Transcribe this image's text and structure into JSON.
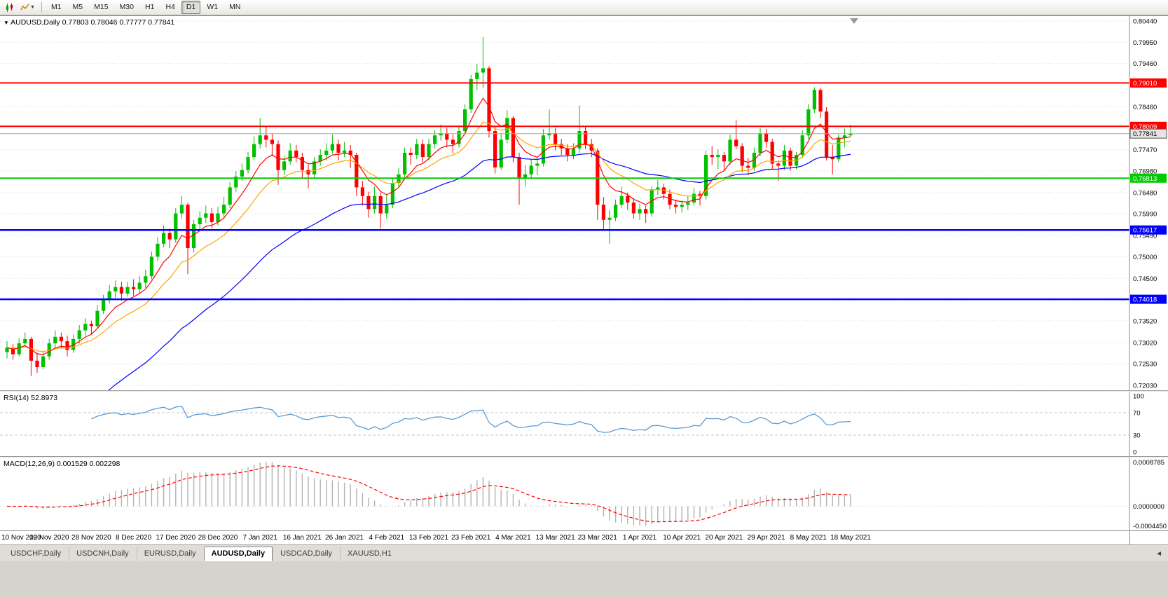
{
  "toolbar": {
    "timeframes": [
      "M1",
      "M5",
      "M15",
      "M30",
      "H1",
      "H4",
      "D1",
      "W1",
      "MN"
    ],
    "active_timeframe": "D1",
    "icons": [
      "candlestick-chart-icon",
      "line-chart-dropdown-icon",
      "chevron-down-icon"
    ]
  },
  "chart_data": {
    "type": "candlestick",
    "title": "AUDUSD,Daily",
    "ohlc_text": "0.77803 0.78046 0.77777 0.77841",
    "ylim": [
      0.7203,
      0.8044
    ],
    "up_color": "#00c000",
    "down_color": "#ff0000",
    "y_ticks": [
      "0.80440",
      "0.79950",
      "0.79460",
      "0.78960",
      "0.78460",
      "0.77970",
      "0.77470",
      "0.76980",
      "0.76480",
      "0.75990",
      "0.75490",
      "0.75000",
      "0.74500",
      "0.74010",
      "0.73520",
      "0.73020",
      "0.72530",
      "0.72030"
    ],
    "x_labels": [
      "10 Nov 2020",
      "19 Nov 2020",
      "28 Nov 2020",
      "8 Dec 2020",
      "17 Dec 2020",
      "28 Dec 2020",
      "7 Jan 2021",
      "16 Jan 2021",
      "26 Jan 2021",
      "4 Feb 2021",
      "13 Feb 2021",
      "23 Feb 2021",
      "4 Mar 2021",
      "13 Mar 2021",
      "23 Mar 2021",
      "1 Apr 2021",
      "10 Apr 2021",
      "20 Apr 2021",
      "29 Apr 2021",
      "8 May 2021",
      "18 May 2021"
    ],
    "x_label_interval": 7,
    "horizontal_levels": [
      {
        "price": 0.7901,
        "label": "0.79010",
        "color": "#ff0000",
        "width": 2
      },
      {
        "price": 0.78009,
        "label": "0.78009",
        "color": "#ff0000",
        "width": 2
      },
      {
        "price": 0.76813,
        "label": "0.76813",
        "color": "#00cc00",
        "width": 2
      },
      {
        "price": 0.75617,
        "label": "0.75617",
        "color": "#0000ff",
        "width": 2.5
      },
      {
        "price": 0.74018,
        "label": "0.74018",
        "color": "#0000ff",
        "width": 2.5
      },
      {
        "price": 0.77841,
        "label": "0.77841",
        "color": "#a8a8a8",
        "type": "bid"
      }
    ],
    "moving_averages": [
      {
        "name": "ma-fast",
        "color": "#ff0000"
      },
      {
        "name": "ma-medium",
        "color": "#ffa500"
      },
      {
        "name": "ma-slow",
        "color": "#0000ff"
      }
    ],
    "indicators": {
      "rsi": {
        "label": "RSI(14)",
        "current": "52.8973",
        "period": 14,
        "levels": [
          70,
          30
        ],
        "axis_ticks": [
          "100",
          "70",
          "30",
          "0"
        ],
        "range": [
          0,
          100
        ],
        "color": "#5b9bd5"
      },
      "macd": {
        "label": "MACD(12,26,9)",
        "values": "0.001529 0.002298",
        "axis_ticks": [
          "0.0008785",
          "0.0000000",
          "-0.0004450"
        ],
        "signal_color": "#ff0000",
        "histogram_color": "#b2b2b2"
      }
    },
    "candles": [
      [
        0.728,
        0.7305,
        0.7265,
        0.729
      ],
      [
        0.729,
        0.7298,
        0.7262,
        0.7275
      ],
      [
        0.7275,
        0.7312,
        0.727,
        0.73
      ],
      [
        0.73,
        0.7325,
        0.7292,
        0.731
      ],
      [
        0.731,
        0.7315,
        0.7225,
        0.726
      ],
      [
        0.726,
        0.7278,
        0.7232,
        0.7245
      ],
      [
        0.7245,
        0.7282,
        0.724,
        0.727
      ],
      [
        0.727,
        0.731,
        0.7262,
        0.73
      ],
      [
        0.73,
        0.733,
        0.729,
        0.7315
      ],
      [
        0.7315,
        0.7325,
        0.7288,
        0.7305
      ],
      [
        0.7305,
        0.7318,
        0.727,
        0.7285
      ],
      [
        0.7285,
        0.732,
        0.7278,
        0.731
      ],
      [
        0.731,
        0.7342,
        0.73,
        0.733
      ],
      [
        0.733,
        0.7358,
        0.7318,
        0.7345
      ],
      [
        0.7345,
        0.7352,
        0.7322,
        0.734
      ],
      [
        0.734,
        0.7388,
        0.7335,
        0.7375
      ],
      [
        0.7375,
        0.7412,
        0.7368,
        0.74
      ],
      [
        0.74,
        0.7435,
        0.7392,
        0.742
      ],
      [
        0.742,
        0.7445,
        0.7405,
        0.743
      ],
      [
        0.743,
        0.7442,
        0.7398,
        0.7415
      ],
      [
        0.7415,
        0.7442,
        0.7408,
        0.743
      ],
      [
        0.743,
        0.7448,
        0.741,
        0.7425
      ],
      [
        0.7425,
        0.7455,
        0.7415,
        0.744
      ],
      [
        0.744,
        0.747,
        0.7428,
        0.7455
      ],
      [
        0.7455,
        0.7512,
        0.7448,
        0.75
      ],
      [
        0.75,
        0.7545,
        0.749,
        0.753
      ],
      [
        0.753,
        0.7572,
        0.7522,
        0.7555
      ],
      [
        0.7555,
        0.7565,
        0.752,
        0.754
      ],
      [
        0.754,
        0.7612,
        0.7532,
        0.76
      ],
      [
        0.76,
        0.764,
        0.7588,
        0.762
      ],
      [
        0.762,
        0.7625,
        0.746,
        0.752
      ],
      [
        0.752,
        0.7585,
        0.751,
        0.7575
      ],
      [
        0.7575,
        0.7605,
        0.7562,
        0.759
      ],
      [
        0.759,
        0.7618,
        0.7578,
        0.76
      ],
      [
        0.76,
        0.7612,
        0.7565,
        0.758
      ],
      [
        0.758,
        0.7615,
        0.7572,
        0.76
      ],
      [
        0.76,
        0.7638,
        0.7592,
        0.762
      ],
      [
        0.762,
        0.7672,
        0.7612,
        0.766
      ],
      [
        0.766,
        0.7698,
        0.765,
        0.7685
      ],
      [
        0.7685,
        0.7715,
        0.7675,
        0.77
      ],
      [
        0.77,
        0.7742,
        0.7692,
        0.773
      ],
      [
        0.773,
        0.7778,
        0.7722,
        0.776
      ],
      [
        0.776,
        0.782,
        0.775,
        0.778
      ],
      [
        0.778,
        0.78,
        0.7752,
        0.777
      ],
      [
        0.777,
        0.7785,
        0.7732,
        0.776
      ],
      [
        0.776,
        0.7768,
        0.7666,
        0.77
      ],
      [
        0.77,
        0.7732,
        0.7688,
        0.772
      ],
      [
        0.772,
        0.7762,
        0.7712,
        0.7745
      ],
      [
        0.7745,
        0.7758,
        0.7718,
        0.773
      ],
      [
        0.773,
        0.774,
        0.768,
        0.77
      ],
      [
        0.77,
        0.7712,
        0.7658,
        0.769
      ],
      [
        0.769,
        0.773,
        0.7682,
        0.772
      ],
      [
        0.772,
        0.7748,
        0.771,
        0.7735
      ],
      [
        0.7735,
        0.7762,
        0.7722,
        0.7745
      ],
      [
        0.7745,
        0.7782,
        0.7738,
        0.776
      ],
      [
        0.776,
        0.777,
        0.7722,
        0.774
      ],
      [
        0.774,
        0.7765,
        0.773,
        0.7745
      ],
      [
        0.7745,
        0.7758,
        0.7705,
        0.7735
      ],
      [
        0.7735,
        0.774,
        0.764,
        0.766
      ],
      [
        0.766,
        0.7675,
        0.7618,
        0.764
      ],
      [
        0.764,
        0.765,
        0.759,
        0.761
      ],
      [
        0.761,
        0.7662,
        0.76,
        0.764
      ],
      [
        0.764,
        0.7648,
        0.7565,
        0.76
      ],
      [
        0.76,
        0.7642,
        0.7588,
        0.762
      ],
      [
        0.762,
        0.7682,
        0.7612,
        0.767
      ],
      [
        0.767,
        0.7705,
        0.7658,
        0.769
      ],
      [
        0.769,
        0.7752,
        0.7682,
        0.774
      ],
      [
        0.774,
        0.7752,
        0.7712,
        0.7735
      ],
      [
        0.7735,
        0.7772,
        0.7725,
        0.776
      ],
      [
        0.776,
        0.777,
        0.7718,
        0.773
      ],
      [
        0.773,
        0.7772,
        0.7722,
        0.776
      ],
      [
        0.776,
        0.7792,
        0.775,
        0.778
      ],
      [
        0.778,
        0.7805,
        0.7768,
        0.7785
      ],
      [
        0.7785,
        0.7798,
        0.7752,
        0.777
      ],
      [
        0.777,
        0.7782,
        0.7738,
        0.776
      ],
      [
        0.776,
        0.7802,
        0.7752,
        0.779
      ],
      [
        0.779,
        0.7852,
        0.7782,
        0.784
      ],
      [
        0.784,
        0.792,
        0.7832,
        0.791
      ],
      [
        0.791,
        0.7945,
        0.7885,
        0.7925
      ],
      [
        0.7925,
        0.8007,
        0.789,
        0.7935
      ],
      [
        0.7935,
        0.794,
        0.7775,
        0.779
      ],
      [
        0.779,
        0.78,
        0.7692,
        0.7706
      ],
      [
        0.7706,
        0.7785,
        0.77,
        0.777
      ],
      [
        0.777,
        0.7838,
        0.7762,
        0.782
      ],
      [
        0.782,
        0.7825,
        0.7718,
        0.773
      ],
      [
        0.773,
        0.774,
        0.762,
        0.768
      ],
      [
        0.768,
        0.7712,
        0.7662,
        0.769
      ],
      [
        0.769,
        0.7725,
        0.768,
        0.771
      ],
      [
        0.771,
        0.773,
        0.7688,
        0.7715
      ],
      [
        0.7715,
        0.7795,
        0.7708,
        0.778
      ],
      [
        0.778,
        0.784,
        0.777,
        0.7785
      ],
      [
        0.7785,
        0.7798,
        0.7745,
        0.776
      ],
      [
        0.776,
        0.7772,
        0.7735,
        0.775
      ],
      [
        0.775,
        0.776,
        0.772,
        0.7735
      ],
      [
        0.7735,
        0.7762,
        0.7725,
        0.775
      ],
      [
        0.775,
        0.7849,
        0.774,
        0.779
      ],
      [
        0.779,
        0.78,
        0.7748,
        0.776
      ],
      [
        0.776,
        0.7772,
        0.773,
        0.7745
      ],
      [
        0.7745,
        0.775,
        0.7585,
        0.762
      ],
      [
        0.762,
        0.7638,
        0.7562,
        0.7585
      ],
      [
        0.7585,
        0.7608,
        0.753,
        0.759
      ],
      [
        0.759,
        0.7632,
        0.7582,
        0.762
      ],
      [
        0.762,
        0.7662,
        0.7612,
        0.764
      ],
      [
        0.764,
        0.7648,
        0.7608,
        0.7625
      ],
      [
        0.7625,
        0.7635,
        0.7588,
        0.76
      ],
      [
        0.76,
        0.7622,
        0.7585,
        0.761
      ],
      [
        0.761,
        0.7618,
        0.7578,
        0.76
      ],
      [
        0.76,
        0.7662,
        0.7592,
        0.7655
      ],
      [
        0.7655,
        0.7678,
        0.7642,
        0.766
      ],
      [
        0.766,
        0.7668,
        0.7632,
        0.7645
      ],
      [
        0.7645,
        0.7655,
        0.761,
        0.762
      ],
      [
        0.762,
        0.7632,
        0.76,
        0.7615
      ],
      [
        0.7615,
        0.763,
        0.7602,
        0.762
      ],
      [
        0.762,
        0.764,
        0.7608,
        0.7625
      ],
      [
        0.7625,
        0.7658,
        0.7618,
        0.7645
      ],
      [
        0.7645,
        0.7652,
        0.7618,
        0.764
      ],
      [
        0.764,
        0.7745,
        0.7632,
        0.7735
      ],
      [
        0.7735,
        0.7755,
        0.7712,
        0.773
      ],
      [
        0.773,
        0.7748,
        0.7702,
        0.7735
      ],
      [
        0.7735,
        0.7742,
        0.7698,
        0.772
      ],
      [
        0.772,
        0.7782,
        0.7712,
        0.777
      ],
      [
        0.777,
        0.7815,
        0.7748,
        0.7755
      ],
      [
        0.7755,
        0.7762,
        0.7695,
        0.771
      ],
      [
        0.771,
        0.7728,
        0.7688,
        0.7705
      ],
      [
        0.7705,
        0.7752,
        0.7698,
        0.774
      ],
      [
        0.774,
        0.7798,
        0.7732,
        0.7785
      ],
      [
        0.7785,
        0.7795,
        0.7752,
        0.7765
      ],
      [
        0.7765,
        0.7772,
        0.7702,
        0.7715
      ],
      [
        0.7715,
        0.7722,
        0.7675,
        0.771
      ],
      [
        0.771,
        0.7758,
        0.77,
        0.7745
      ],
      [
        0.7745,
        0.7752,
        0.7698,
        0.771
      ],
      [
        0.771,
        0.7742,
        0.7702,
        0.7735
      ],
      [
        0.7735,
        0.7792,
        0.7728,
        0.778
      ],
      [
        0.778,
        0.7852,
        0.7772,
        0.784
      ],
      [
        0.784,
        0.7891,
        0.7832,
        0.7885
      ],
      [
        0.7885,
        0.789,
        0.782,
        0.7835
      ],
      [
        0.7835,
        0.7845,
        0.7722,
        0.773
      ],
      [
        0.773,
        0.7758,
        0.769,
        0.7725
      ],
      [
        0.7725,
        0.7782,
        0.7718,
        0.7775
      ],
      [
        0.7775,
        0.7796,
        0.7752,
        0.778
      ],
      [
        0.77803,
        0.78046,
        0.77777,
        0.77841
      ]
    ]
  },
  "tab_bar": {
    "tabs": [
      "USDCHF,Daily",
      "USDCNH,Daily",
      "EURUSD,Daily",
      "AUDUSD,Daily",
      "USDCAD,Daily",
      "XAUUSD,H1"
    ],
    "active_tab": "AUDUSD,Daily",
    "scroll_left_icon": "tab-scroll-left-icon"
  }
}
